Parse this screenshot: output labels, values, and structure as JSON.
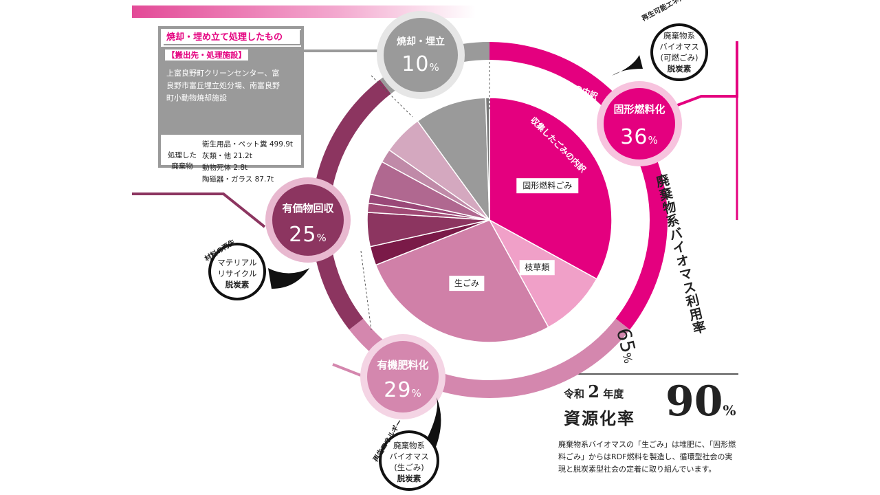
{
  "header_bar_color": "#e34a97",
  "info_box": {
    "title": "焼却・埋め立て処理したもの",
    "subtitle": "【搬出先・処理施設】",
    "facilities": [
      "上富良野町クリーンセンター、富",
      "良野市富丘埋立処分場、南富良野",
      "町小動物焼却施設"
    ],
    "waste_label_lines": [
      "処理した",
      "廃棄物"
    ],
    "waste_items": [
      "衛生用品・ペット糞 499.9t",
      "灰類・他 21.2t",
      "動物死体 2.8t",
      "陶磁器・ガラス 87.7t"
    ]
  },
  "ring_labels": {
    "outer_top_right": "処理したごみの内訳",
    "inner_top_right": "収集したごみの内訳"
  },
  "nodes": {
    "incineration": {
      "label": "焼却・埋立",
      "pct": "10",
      "unit": "%",
      "color": "#9a9a9a"
    },
    "solid_fuel": {
      "label": "固形燃料化",
      "pct": "36",
      "unit": "%",
      "color": "#e4007f"
    },
    "recovery": {
      "label": "有価物回収",
      "pct": "25",
      "unit": "%",
      "color": "#8c3560"
    },
    "compost": {
      "label": "有機肥料化",
      "pct": "29",
      "unit": "%",
      "color": "#d487ae"
    }
  },
  "bubbles": {
    "top_right": {
      "tag": "再生可能エネルギー",
      "lines": [
        "廃棄物系",
        "バイオマス",
        "(可燃ごみ)"
      ],
      "badge": "脱炭素"
    },
    "left": {
      "tag": "材料の再生",
      "lines": [
        "マテリアル",
        "リサイクル"
      ],
      "badge": "脱炭素"
    },
    "bottom": {
      "tag": "再生エネルギー",
      "lines": [
        "廃棄物系",
        "バイオマス",
        "(生ごみ)"
      ],
      "badge": "脱炭素"
    }
  },
  "biomass_rate": {
    "label": "廃棄物系バイオマス利用率",
    "value": "65",
    "unit": "%"
  },
  "chart_data": {
    "type": "pie",
    "title": "",
    "slices": [
      {
        "label": "固形燃料ごみ",
        "value": 33,
        "color": "#e4007f"
      },
      {
        "label": "枝草類",
        "value": 9,
        "color": "#f0a0c8"
      },
      {
        "label": "生ごみ",
        "value": 27,
        "color": "#d080a8"
      },
      {
        "label": "",
        "value": 2.5,
        "color": "#7a1a48"
      },
      {
        "label": "",
        "value": 4.5,
        "color": "#8c3560"
      },
      {
        "label": "",
        "value": 1.2,
        "color": "#a04a75"
      },
      {
        "label": "",
        "value": 1.2,
        "color": "#9a4878"
      },
      {
        "label": "",
        "value": 4.5,
        "color": "#b06890"
      },
      {
        "label": "",
        "value": 1.8,
        "color": "#c08aa8"
      },
      {
        "label": "",
        "value": 5.3,
        "color": "#d4a8bf"
      },
      {
        "label": "",
        "value": 9.5,
        "color": "#9a9a9a"
      },
      {
        "label": "",
        "value": 0.5,
        "color": "#777777"
      }
    ]
  },
  "summary": {
    "era": "令和",
    "year": "2",
    "year_suffix": "年度",
    "title": "資源化率",
    "value": "90",
    "unit": "%"
  },
  "description": "廃棄物系バイオマスの「生ごみ」は堆肥に、「固形燃料ごみ」からはRDF燃料を製造し、循環型社会の実現と脱炭素型社会の定着に取り組んでいます。"
}
